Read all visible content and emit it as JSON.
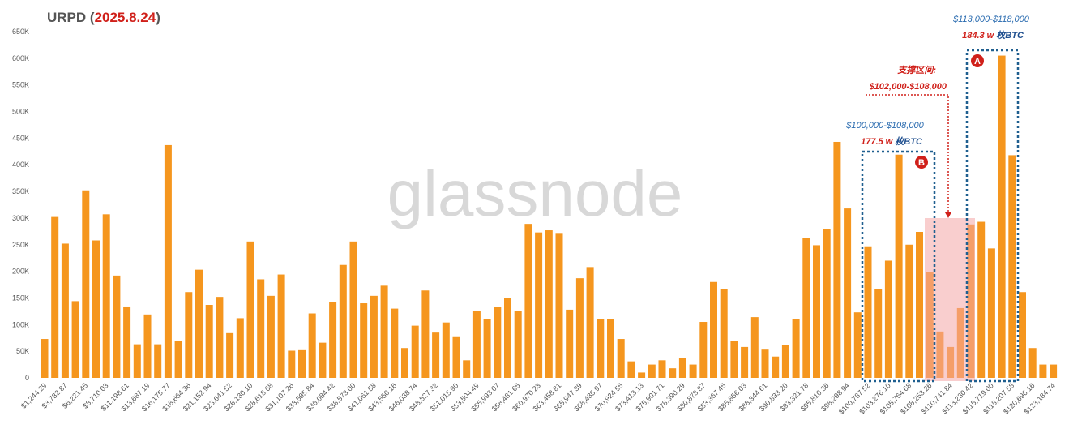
{
  "chart_data": {
    "type": "bar",
    "title_parts": [
      "URPD (",
      "2025.8.24",
      ")"
    ],
    "watermark": "glassnode",
    "color": "#f5961e",
    "categories": [
      "$1,244.29",
      null,
      "$3,732.87",
      null,
      "$6,221.45",
      null,
      "$8,710.03",
      null,
      "$11,198.61",
      null,
      "$13,687.19",
      null,
      "$16,175.77",
      null,
      "$18,664.36",
      null,
      "$21,152.94",
      null,
      "$23,641.52",
      null,
      "$26,130.10",
      null,
      "$28,618.68",
      null,
      "$31,107.26",
      null,
      "$33,595.84",
      null,
      "$36,084.42",
      null,
      "$38,573.00",
      null,
      "$41,061.58",
      null,
      "$43,550.16",
      null,
      "$46,038.74",
      null,
      "$48,527.32",
      null,
      "$51,015.90",
      null,
      "$53,504.49",
      null,
      "$55,993.07",
      null,
      "$58,481.65",
      null,
      "$60,970.23",
      null,
      "$63,458.81",
      null,
      "$65,947.39",
      null,
      "$68,435.97",
      null,
      "$70,924.55",
      null,
      "$73,413.13",
      null,
      "$75,901.71",
      null,
      "$78,390.29",
      null,
      "$80,878.87",
      null,
      "$83,367.45",
      null,
      "$85,856.03",
      null,
      "$88,344.61",
      null,
      "$90,833.20",
      null,
      "$93,321.78",
      null,
      "$95,810.36",
      null,
      "$98,298.94",
      null,
      "$100,787.52",
      null,
      "$103,276.10",
      null,
      "$105,764.68",
      null,
      "$108,253.26",
      null,
      "$110,741.84",
      null,
      "$113,230.42",
      null,
      "$115,719.00",
      null,
      "$118,207.58",
      null,
      "$120,696.16",
      null,
      "$123,184.74"
    ],
    "values": [
      73000,
      302000,
      252000,
      144000,
      352000,
      258000,
      307000,
      192000,
      134000,
      63000,
      119000,
      63000,
      437000,
      70000,
      161000,
      203000,
      137000,
      152000,
      84000,
      112000,
      256000,
      185000,
      154000,
      194000,
      51000,
      52000,
      121000,
      66000,
      143000,
      212000,
      256000,
      140000,
      154000,
      173000,
      130000,
      56000,
      98000,
      164000,
      85000,
      104000,
      78000,
      33000,
      125000,
      110000,
      133000,
      150000,
      125000,
      289000,
      273000,
      277000,
      272000,
      128000,
      187000,
      208000,
      111000,
      111000,
      73000,
      31000,
      10000,
      25000,
      33000,
      18000,
      37000,
      25000,
      105000,
      180000,
      166000,
      69000,
      58000,
      114000,
      53000,
      40000,
      61000,
      111000,
      262000,
      249000,
      279000,
      443000,
      318000,
      123000,
      247000,
      167000,
      220000,
      419000,
      250000,
      274000,
      199000,
      87000,
      58000,
      131000,
      288000,
      293000,
      243000,
      605000,
      418000,
      161000,
      56000,
      25000,
      25000
    ],
    "ylim": [
      0,
      650000
    ],
    "yticks": [
      0,
      {
        "value": 50000,
        "label": "50K"
      },
      {
        "value": 100000,
        "label": "100K"
      },
      {
        "value": 150000,
        "label": "150K"
      },
      {
        "value": 200000,
        "label": "200K"
      },
      {
        "value": 250000,
        "label": "250K"
      },
      {
        "value": 300000,
        "label": "300K"
      },
      {
        "value": 350000,
        "label": "350K"
      },
      {
        "value": 400000,
        "label": "400K"
      },
      {
        "value": 450000,
        "label": "450K"
      },
      {
        "value": 500000,
        "label": "500K"
      },
      {
        "value": 550000,
        "label": "550K"
      },
      {
        "value": 600000,
        "label": "600K"
      },
      {
        "value": 650000,
        "label": "650K"
      }
    ],
    "annotations": {
      "a_range": "$113,000-$118,000",
      "a_amount": "184.3 w",
      "a_unit": "枚BTC",
      "a_badge": "A",
      "support_title": "支撑区间:",
      "support_range": "$102,000-$108,000",
      "b_range": "$100,000-$108,000",
      "b_amount": "177.5 w",
      "b_unit": "枚BTC",
      "b_badge": "B"
    }
  }
}
